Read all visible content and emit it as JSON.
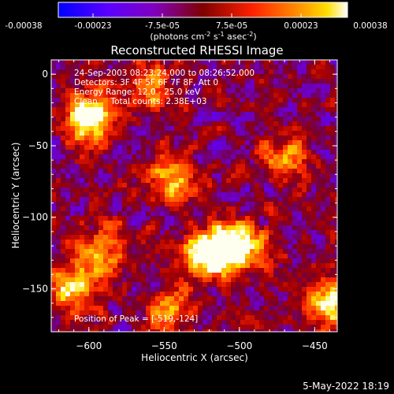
{
  "colorbar": {
    "tick_labels": [
      "-0.00038",
      "-0.00023",
      "-7.5e-05",
      "7.5e-05",
      "0.00023",
      "0.00038"
    ],
    "unit_prefix": "(photons cm",
    "unit_sup1": "-2",
    "unit_mid": " s",
    "unit_sup2": "-1",
    "unit_mid2": " asec",
    "unit_sup3": "-2",
    "unit_suffix": ")"
  },
  "chart_data": {
    "type": "heatmap",
    "title": "Reconstructed RHESSI Image",
    "xlabel": "Heliocentric X (arcsec)",
    "ylabel": "Heliocentric Y (arcsec)",
    "xlim": [
      -625,
      -435
    ],
    "ylim": [
      -180,
      10
    ],
    "x_ticks": [
      -600,
      -550,
      -500,
      -450
    ],
    "y_ticks": [
      0,
      -50,
      -100,
      -150
    ],
    "x_tick_labels": [
      "−600",
      "−550",
      "−500",
      "−450"
    ],
    "y_tick_labels": [
      "0",
      "−50",
      "−100",
      "−150"
    ],
    "color_range": [
      -0.00038,
      0.00038
    ],
    "colormap": [
      "#0000ff",
      "#7f00ff",
      "#800000",
      "#ff0000",
      "#ff7f00",
      "#ffff00",
      "#ffffff"
    ],
    "annotations": [
      "24-Sep-2003 08:23:24.000 to 08:26:52.000",
      "Detectors: 3F 4F 5F 6F 7F 8F, Att 0",
      "Energy Range: 12.0 - 25.0 keV",
      "Clean     Total counts: 2.38E+03"
    ],
    "peak_label": "Position of Peak = [-519,-124]",
    "peak_position": [
      -519,
      -124
    ],
    "bright_sources": [
      {
        "x": -600,
        "y": -30,
        "level": 1.0
      },
      {
        "x": -519,
        "y": -124,
        "level": 1.0
      },
      {
        "x": -545,
        "y": -75,
        "level": 0.7
      },
      {
        "x": -500,
        "y": -120,
        "level": 0.8
      },
      {
        "x": -610,
        "y": -150,
        "level": 0.7
      },
      {
        "x": -440,
        "y": -160,
        "level": 0.75
      },
      {
        "x": -560,
        "y": -10,
        "level": 0.55
      },
      {
        "x": -470,
        "y": -60,
        "level": 0.55
      },
      {
        "x": -590,
        "y": -125,
        "level": 0.55
      },
      {
        "x": -545,
        "y": -165,
        "level": 0.6
      }
    ]
  },
  "footer": {
    "timestamp": "5-May-2022 18:19"
  }
}
